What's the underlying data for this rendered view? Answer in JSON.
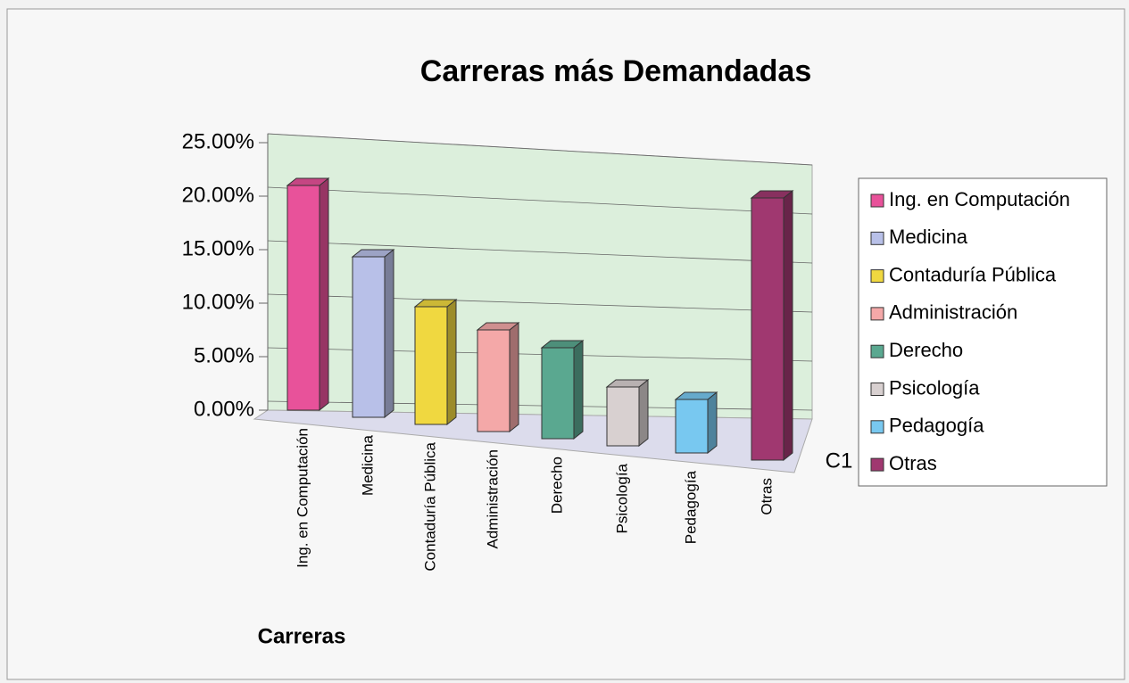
{
  "chart_data": {
    "type": "bar",
    "title": "Carreras más Demandadas",
    "x_label": "Carreras",
    "series_label": "C1",
    "categories": [
      "Ing. en Computación",
      "Medicina",
      "Contaduría Pública",
      "Administración",
      "Derecho",
      "Psicología",
      "Pedagogía",
      "Otras"
    ],
    "values": [
      21,
      15,
      11,
      9.5,
      8.5,
      5.5,
      5,
      24.5
    ],
    "colors": [
      "#e8529a",
      "#b8c0e8",
      "#f0d840",
      "#f4a8a8",
      "#5aa890",
      "#d8d0d0",
      "#78c8f0",
      "#a03870"
    ],
    "ylim": [
      0,
      25
    ],
    "yticks": [
      {
        "value": 0,
        "label": "0.00%"
      },
      {
        "value": 5,
        "label": "5.00%"
      },
      {
        "value": 10,
        "label": "10.00%"
      },
      {
        "value": 15,
        "label": "15.00%"
      },
      {
        "value": 20,
        "label": "20.00%"
      },
      {
        "value": 25,
        "label": "25.00%"
      }
    ],
    "grid": true,
    "legend": "right"
  }
}
